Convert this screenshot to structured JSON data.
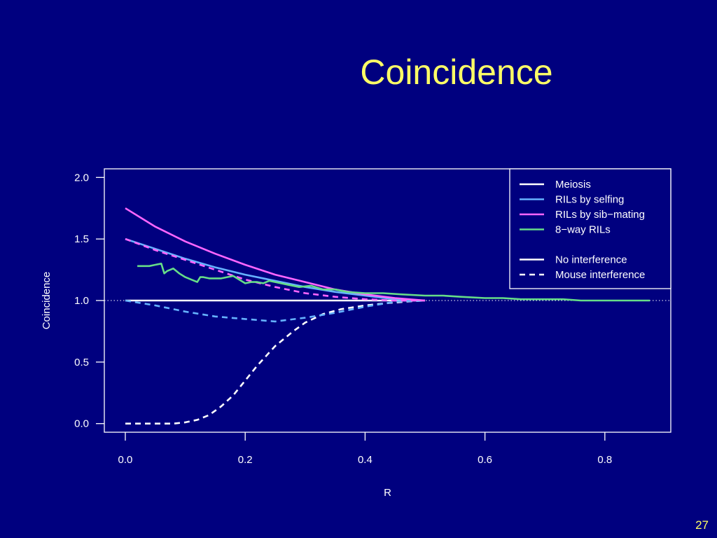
{
  "slide": {
    "title": "Coincidence",
    "page_number": "27"
  },
  "colors": {
    "background": "#00007f",
    "title": "#ffff66",
    "meiosis": "#ffffff",
    "selfing": "#66b3ff",
    "sibmating": "#ff66ff",
    "eightway": "#66dd88",
    "frame": "#ffffff"
  },
  "chart_data": {
    "type": "line",
    "xlabel": "R",
    "ylabel": "Coincidence",
    "xlim": [
      -0.035,
      0.91
    ],
    "ylim": [
      -0.07,
      2.07
    ],
    "xticks": [
      0.0,
      0.2,
      0.4,
      0.6,
      0.8
    ],
    "xtick_labels": [
      "0.0",
      "0.2",
      "0.4",
      "0.6",
      "0.8"
    ],
    "yticks": [
      0.0,
      0.5,
      1.0,
      1.5,
      2.0
    ],
    "ytick_labels": [
      "0.0",
      "0.5",
      "1.0",
      "1.5",
      "2.0"
    ],
    "reference_line": {
      "y": 1.0,
      "style": "dotted"
    },
    "legend": {
      "position": "top-right",
      "entries": [
        {
          "label": "Meiosis",
          "color": "#ffffff",
          "style": "solid"
        },
        {
          "label": "RILs by selfing",
          "color": "#66b3ff",
          "style": "solid"
        },
        {
          "label": "RILs by sib−mating",
          "color": "#ff66ff",
          "style": "solid"
        },
        {
          "label": "8−way RILs",
          "color": "#66dd88",
          "style": "solid"
        },
        {
          "label": "",
          "color": "",
          "style": "none"
        },
        {
          "label": "No interference",
          "color": "#ffffff",
          "style": "solid"
        },
        {
          "label": "Mouse interference",
          "color": "#ffffff",
          "style": "dashed"
        }
      ]
    },
    "series": [
      {
        "key": "meiosis_none",
        "color": "#ffffff",
        "dash": "solid",
        "x": [
          0.0,
          0.5
        ],
        "y": [
          1.0,
          1.0
        ]
      },
      {
        "key": "meiosis_mouse",
        "color": "#ffffff",
        "dash": "dashed",
        "x": [
          0.0,
          0.05,
          0.08,
          0.1,
          0.12,
          0.14,
          0.16,
          0.18,
          0.2,
          0.22,
          0.25,
          0.28,
          0.3,
          0.33,
          0.36,
          0.4,
          0.44,
          0.48,
          0.5
        ],
        "y": [
          0.0,
          0.0,
          0.0,
          0.01,
          0.03,
          0.07,
          0.14,
          0.23,
          0.35,
          0.47,
          0.63,
          0.75,
          0.82,
          0.89,
          0.93,
          0.96,
          0.98,
          0.995,
          1.0
        ]
      },
      {
        "key": "selfing_none",
        "color": "#66b3ff",
        "dash": "solid",
        "x": [
          0.0,
          0.05,
          0.1,
          0.15,
          0.2,
          0.25,
          0.3,
          0.35,
          0.4,
          0.45,
          0.5
        ],
        "y": [
          1.5,
          1.42,
          1.34,
          1.27,
          1.21,
          1.16,
          1.11,
          1.07,
          1.04,
          1.01,
          1.0
        ]
      },
      {
        "key": "selfing_mouse",
        "color": "#66b3ff",
        "dash": "dashed",
        "x": [
          0.0,
          0.05,
          0.1,
          0.15,
          0.2,
          0.25,
          0.3,
          0.35,
          0.4,
          0.45,
          0.5
        ],
        "y": [
          1.0,
          0.96,
          0.91,
          0.87,
          0.85,
          0.83,
          0.86,
          0.9,
          0.95,
          0.99,
          1.0
        ]
      },
      {
        "key": "sibmating_none",
        "color": "#ff66ff",
        "dash": "solid",
        "x": [
          0.0,
          0.05,
          0.1,
          0.15,
          0.2,
          0.25,
          0.3,
          0.35,
          0.4,
          0.45,
          0.5
        ],
        "y": [
          1.75,
          1.6,
          1.48,
          1.38,
          1.29,
          1.21,
          1.15,
          1.09,
          1.05,
          1.02,
          1.0
        ]
      },
      {
        "key": "sibmating_mouse",
        "color": "#ff66ff",
        "dash": "dashed",
        "x": [
          0.0,
          0.05,
          0.1,
          0.15,
          0.2,
          0.25,
          0.3,
          0.35,
          0.4,
          0.45,
          0.5
        ],
        "y": [
          1.5,
          1.41,
          1.33,
          1.25,
          1.17,
          1.11,
          1.06,
          1.03,
          1.01,
          1.0,
          1.0
        ]
      },
      {
        "key": "eightway",
        "color": "#66dd88",
        "dash": "solid",
        "x": [
          0.02,
          0.03,
          0.04,
          0.05,
          0.06,
          0.065,
          0.07,
          0.08,
          0.09,
          0.1,
          0.11,
          0.12,
          0.125,
          0.13,
          0.14,
          0.15,
          0.16,
          0.17,
          0.18,
          0.19,
          0.2,
          0.21,
          0.22,
          0.23,
          0.24,
          0.25,
          0.27,
          0.29,
          0.31,
          0.33,
          0.35,
          0.37,
          0.4,
          0.43,
          0.46,
          0.5,
          0.53,
          0.56,
          0.6,
          0.63,
          0.66,
          0.7,
          0.73,
          0.76,
          0.8,
          0.84,
          0.875
        ],
        "y": [
          1.28,
          1.28,
          1.28,
          1.29,
          1.3,
          1.22,
          1.24,
          1.26,
          1.22,
          1.19,
          1.17,
          1.15,
          1.19,
          1.19,
          1.18,
          1.18,
          1.18,
          1.19,
          1.2,
          1.17,
          1.14,
          1.15,
          1.15,
          1.14,
          1.16,
          1.15,
          1.13,
          1.11,
          1.12,
          1.09,
          1.09,
          1.07,
          1.06,
          1.06,
          1.05,
          1.04,
          1.04,
          1.03,
          1.02,
          1.02,
          1.01,
          1.01,
          1.01,
          1.0,
          1.0,
          1.0,
          1.0
        ]
      }
    ]
  }
}
